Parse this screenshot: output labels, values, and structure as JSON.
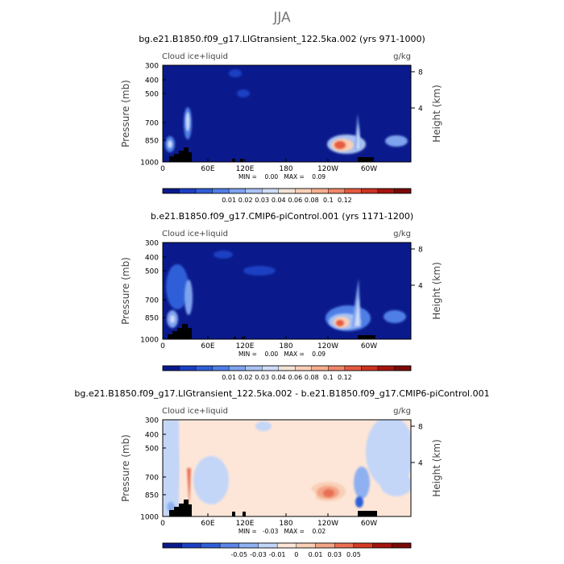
{
  "figure": {
    "title": "JJA"
  },
  "chart_data": [
    {
      "type": "heatmap",
      "title": "bg.e21.B1850.f09_g17.LIGtransient_122.5ka.002 (yrs 971-1000)",
      "variable_label": "Cloud ice+liquid",
      "units": "g/kg",
      "ylabel": "Pressure (mb)",
      "y2label": "Height (km)",
      "x_ticks": [
        "0",
        "60E",
        "120E",
        "180",
        "120W",
        "60W"
      ],
      "y_ticks": [
        "300",
        "400",
        "500",
        "700",
        "850",
        "1000"
      ],
      "y2_ticks": [
        "8",
        "4"
      ],
      "min_max_text": "MIN =    0.00   MAX =    0.09",
      "min": 0.0,
      "max": 0.09,
      "colorbar_labels": [
        "0.01",
        "0.02",
        "0.03",
        "0.04",
        "0.06",
        "0.08",
        "0.1",
        "0.12"
      ],
      "colorbar_colors": [
        "#0a1a8c",
        "#1c3fc2",
        "#2f5fd8",
        "#4f7fe6",
        "#7fa3ee",
        "#a9c2f4",
        "#cfdcf8",
        "#f2e3d6",
        "#f9cfb6",
        "#f6ae8e",
        "#f0876a",
        "#e55a3f",
        "#cc3220",
        "#a51410",
        "#7a0a08"
      ],
      "background_color": "#0a1a8c"
    },
    {
      "type": "heatmap",
      "title": "b.e21.B1850.f09_g17.CMIP6-piControl.001 (yrs 1171-1200)",
      "variable_label": "Cloud ice+liquid",
      "units": "g/kg",
      "ylabel": "Pressure (mb)",
      "y2label": "Height (km)",
      "x_ticks": [
        "0",
        "60E",
        "120E",
        "180",
        "120W",
        "60W"
      ],
      "y_ticks": [
        "300",
        "400",
        "500",
        "700",
        "850",
        "1000"
      ],
      "y2_ticks": [
        "8",
        "4"
      ],
      "min_max_text": "MIN =    0.00   MAX =    0.09",
      "min": 0.0,
      "max": 0.09,
      "colorbar_labels": [
        "0.01",
        "0.02",
        "0.03",
        "0.04",
        "0.06",
        "0.08",
        "0.1",
        "0.12"
      ],
      "colorbar_colors": [
        "#0a1a8c",
        "#1c3fc2",
        "#2f5fd8",
        "#4f7fe6",
        "#7fa3ee",
        "#a9c2f4",
        "#cfdcf8",
        "#f2e3d6",
        "#f9cfb6",
        "#f6ae8e",
        "#f0876a",
        "#e55a3f",
        "#cc3220",
        "#a51410",
        "#7a0a08"
      ],
      "background_color": "#0a1a8c"
    },
    {
      "type": "heatmap",
      "title": "bg.e21.B1850.f09_g17.LIGtransient_122.5ka.002 - b.e21.B1850.f09_g17.CMIP6-piControl.001",
      "variable_label": "Cloud ice+liquid",
      "units": "g/kg",
      "ylabel": "Pressure (mb)",
      "y2label": "Height (km)",
      "x_ticks": [
        "0",
        "60E",
        "120E",
        "180",
        "120W",
        "60W"
      ],
      "y_ticks": [
        "300",
        "400",
        "500",
        "700",
        "850",
        "1000"
      ],
      "y2_ticks": [
        "8",
        "4"
      ],
      "min_max_text": "MIN =   -0.03   MAX =    0.02",
      "min": -0.03,
      "max": 0.02,
      "colorbar_labels": [
        "-0.05",
        "-0.03",
        "-0.01",
        "0",
        "0.01",
        "0.03",
        "0.05"
      ],
      "colorbar_colors": [
        "#0a1a8c",
        "#1c3fc2",
        "#2f5fd8",
        "#5b86e6",
        "#8fb0f0",
        "#c3d6f8",
        "#fde6d8",
        "#f9cfb6",
        "#f3a486",
        "#e96f52",
        "#d43a24",
        "#a51410",
        "#7a0a08"
      ],
      "background_color": "#fde6d8"
    }
  ]
}
